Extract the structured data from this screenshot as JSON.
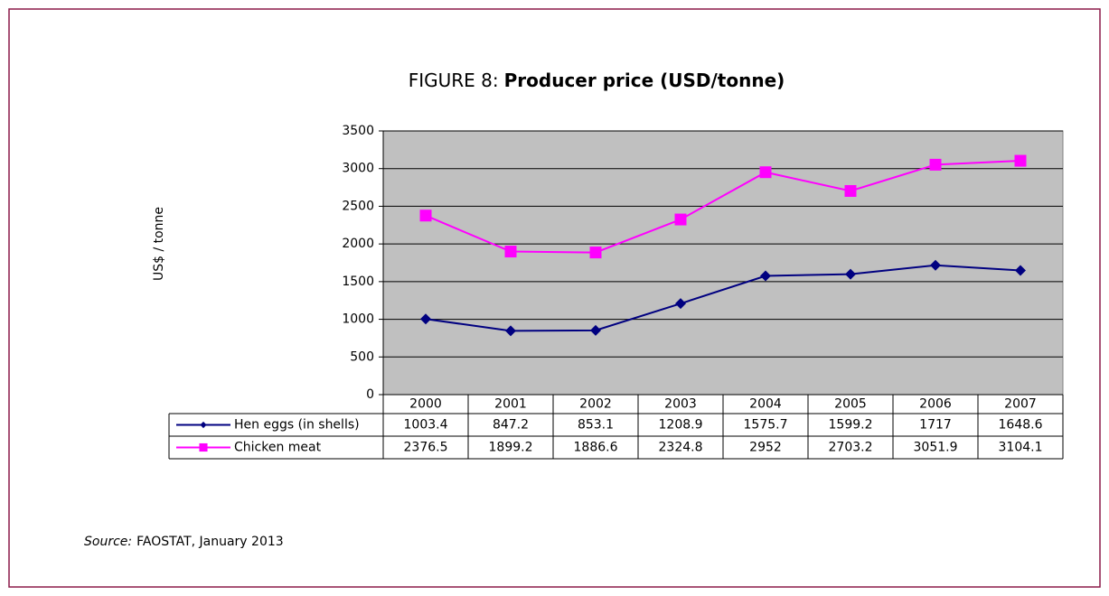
{
  "chart_data": {
    "type": "line",
    "figure_label": "FIGURE 8:",
    "title": "Producer price (USD/tonne)",
    "y_label": "US$ / tonne",
    "categories": [
      "2000",
      "2001",
      "2002",
      "2003",
      "2004",
      "2005",
      "2006",
      "2007"
    ],
    "series": [
      {
        "name": "Hen eggs (in shells)",
        "color": "#000080",
        "marker": "diamond",
        "values": [
          1003.4,
          847.2,
          853.1,
          1208.9,
          1575.7,
          1599.2,
          1717,
          1648.6
        ]
      },
      {
        "name": "Chicken meat",
        "color": "#ff00ff",
        "marker": "square",
        "values": [
          2376.5,
          1899.2,
          1886.6,
          2324.8,
          2952,
          2703.2,
          3051.9,
          3104.1
        ]
      }
    ],
    "ylim": [
      0,
      3500
    ],
    "yticks": [
      0,
      500,
      1000,
      1500,
      2000,
      2500,
      3000,
      3500
    ],
    "grid": true,
    "plot_background": "#c0c0c0",
    "source_label": "Source:",
    "source": "FAOSTAT, January 2013"
  }
}
